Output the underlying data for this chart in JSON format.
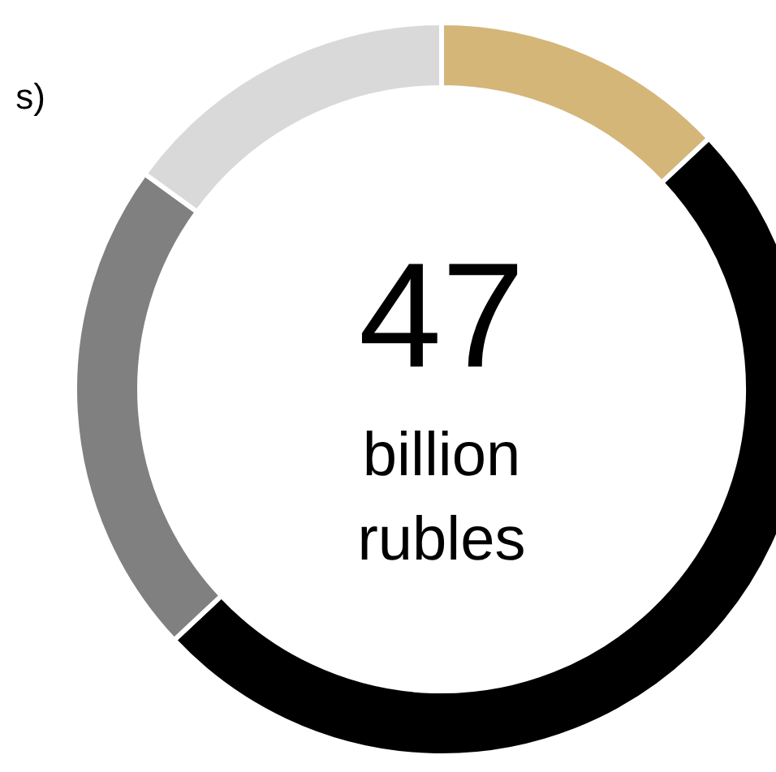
{
  "chart_data": {
    "type": "donut",
    "title": "s)",
    "categories": [
      null,
      null,
      null,
      null
    ],
    "values": [
      13,
      50,
      22,
      15
    ],
    "colors": [
      "#d4b679",
      "#000000",
      "#808080",
      "#d9d9d9"
    ],
    "annotations": [
      "47",
      "billion",
      "rubles"
    ]
  }
}
